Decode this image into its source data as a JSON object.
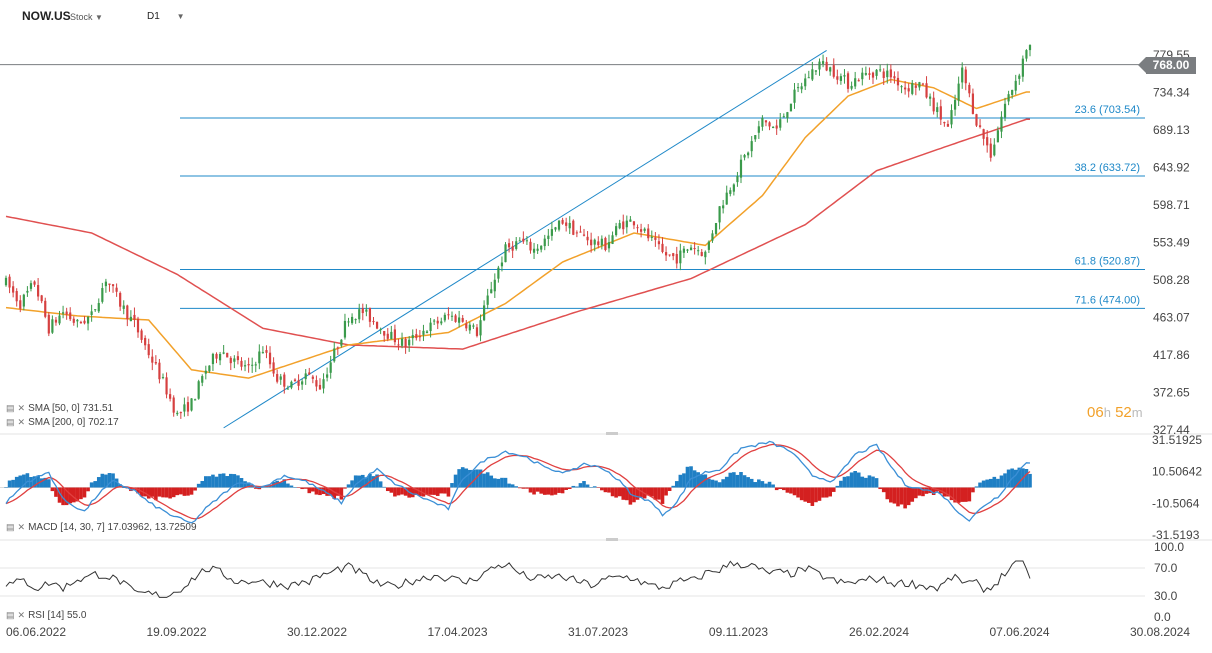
{
  "header": {
    "symbol": "NOW.US",
    "type": "Stock",
    "timeframe": "D1"
  },
  "current_price": "768.00",
  "timer": {
    "hours": "06",
    "h_unit": "h",
    "minutes": "52",
    "m_unit": "m"
  },
  "colors": {
    "up": "#3a9a4b",
    "down": "#d64040",
    "sma50": "#f2a12a",
    "sma200": "#e05050",
    "fib": "#1e88c8",
    "macd": "#3b8fd6",
    "signal": "#e04040",
    "rsi": "#333333"
  },
  "indicators": {
    "sma50_label": "SMA [50, 0] 731.51",
    "sma200_label": "SMA [200, 0] 702.17",
    "macd_label": "MACD [14, 30, 7] 17.03962, 13.72509",
    "rsi_label": "RSI [14] 55.0"
  },
  "chart_data": [
    {
      "type": "candlestick",
      "title": "NOW.US",
      "x_tick_labels": [
        "06.06.2022",
        "19.09.2022",
        "30.12.2022",
        "17.04.2023",
        "31.07.2023",
        "09.11.2023",
        "26.02.2024",
        "07.06.2024",
        "30.08.2024"
      ],
      "y_tick_labels": [
        "779.55",
        "734.34",
        "689.13",
        "643.92",
        "598.71",
        "553.49",
        "508.28",
        "463.07",
        "417.86",
        "372.65",
        "327.44"
      ],
      "ylim": [
        327.44,
        779.55
      ],
      "grid": false,
      "price_anchors": [
        [
          0,
          505
        ],
        [
          4,
          480
        ],
        [
          8,
          505
        ],
        [
          12,
          450
        ],
        [
          16,
          470
        ],
        [
          20,
          455
        ],
        [
          24,
          465
        ],
        [
          28,
          510
        ],
        [
          32,
          480
        ],
        [
          36,
          455
        ],
        [
          40,
          420
        ],
        [
          44,
          385
        ],
        [
          48,
          345
        ],
        [
          52,
          360
        ],
        [
          56,
          400
        ],
        [
          60,
          425
        ],
        [
          64,
          410
        ],
        [
          68,
          400
        ],
        [
          72,
          425
        ],
        [
          76,
          390
        ],
        [
          80,
          380
        ],
        [
          84,
          395
        ],
        [
          88,
          380
        ],
        [
          92,
          420
        ],
        [
          96,
          465
        ],
        [
          100,
          470
        ],
        [
          104,
          455
        ],
        [
          108,
          440
        ],
        [
          112,
          430
        ],
        [
          116,
          445
        ],
        [
          120,
          455
        ],
        [
          124,
          465
        ],
        [
          128,
          460
        ],
        [
          132,
          445
        ],
        [
          136,
          500
        ],
        [
          140,
          545
        ],
        [
          144,
          555
        ],
        [
          148,
          545
        ],
        [
          152,
          560
        ],
        [
          156,
          580
        ],
        [
          160,
          565
        ],
        [
          164,
          555
        ],
        [
          168,
          550
        ],
        [
          172,
          575
        ],
        [
          176,
          580
        ],
        [
          180,
          560
        ],
        [
          184,
          540
        ],
        [
          188,
          535
        ],
        [
          192,
          550
        ],
        [
          196,
          540
        ],
        [
          200,
          595
        ],
        [
          204,
          630
        ],
        [
          208,
          665
        ],
        [
          212,
          700
        ],
        [
          216,
          690
        ],
        [
          220,
          725
        ],
        [
          224,
          750
        ],
        [
          228,
          770
        ],
        [
          232,
          760
        ],
        [
          236,
          745
        ],
        [
          240,
          755
        ],
        [
          244,
          760
        ],
        [
          248,
          755
        ],
        [
          252,
          740
        ],
        [
          256,
          745
        ],
        [
          260,
          718
        ],
        [
          264,
          690
        ],
        [
          268,
          760
        ],
        [
          272,
          700
        ],
        [
          276,
          660
        ],
        [
          280,
          720
        ],
        [
          284,
          760
        ],
        [
          286,
          788
        ]
      ],
      "sma50_anchors": [
        [
          0,
          475
        ],
        [
          20,
          465
        ],
        [
          40,
          460
        ],
        [
          52,
          400
        ],
        [
          68,
          390
        ],
        [
          96,
          430
        ],
        [
          124,
          445
        ],
        [
          140,
          480
        ],
        [
          156,
          530
        ],
        [
          176,
          565
        ],
        [
          196,
          550
        ],
        [
          212,
          610
        ],
        [
          224,
          680
        ],
        [
          236,
          730
        ],
        [
          248,
          750
        ],
        [
          260,
          740
        ],
        [
          272,
          715
        ],
        [
          286,
          735
        ]
      ],
      "sma200_anchors": [
        [
          0,
          585
        ],
        [
          24,
          565
        ],
        [
          48,
          515
        ],
        [
          72,
          450
        ],
        [
          96,
          430
        ],
        [
          128,
          425
        ],
        [
          160,
          470
        ],
        [
          192,
          510
        ],
        [
          224,
          575
        ],
        [
          244,
          640
        ],
        [
          264,
          670
        ],
        [
          286,
          702
        ]
      ],
      "annotations": {
        "current_price_line": 768.0,
        "trend_line": {
          "from": [
            61,
            330
          ],
          "to": [
            230,
            785
          ]
        },
        "fib_levels": [
          {
            "label": "23.6 (703.54)",
            "value": 703.54
          },
          {
            "label": "38.2 (633.72)",
            "value": 633.72
          },
          {
            "label": "61.8 (520.87)",
            "value": 520.87
          },
          {
            "label": "71.6 (474.00)",
            "value": 474.0
          }
        ]
      }
    },
    {
      "type": "macd",
      "series": [
        {
          "name": "MACD [14, 30, 7]",
          "last": 17.03962
        },
        {
          "name": "signal",
          "last": 13.72509
        }
      ],
      "y_tick_labels": [
        "31.51925",
        "10.50642",
        "-10.5064",
        "-31.5193"
      ],
      "ylim": [
        -31.5193,
        31.51925
      ],
      "phase_points": [
        [
          0,
          -10
        ],
        [
          6,
          4
        ],
        [
          12,
          10
        ],
        [
          16,
          -8
        ],
        [
          22,
          -16
        ],
        [
          26,
          -4
        ],
        [
          30,
          4
        ],
        [
          36,
          -2
        ],
        [
          40,
          -10
        ],
        [
          46,
          -18
        ],
        [
          52,
          -24
        ],
        [
          56,
          -14
        ],
        [
          62,
          -2
        ],
        [
          66,
          4
        ],
        [
          72,
          0
        ],
        [
          78,
          8
        ],
        [
          84,
          4
        ],
        [
          90,
          -4
        ],
        [
          94,
          -10
        ],
        [
          98,
          2
        ],
        [
          104,
          12
        ],
        [
          108,
          4
        ],
        [
          114,
          -4
        ],
        [
          120,
          -10
        ],
        [
          124,
          -14
        ],
        [
          128,
          6
        ],
        [
          134,
          18
        ],
        [
          140,
          24
        ],
        [
          146,
          20
        ],
        [
          152,
          12
        ],
        [
          158,
          10
        ],
        [
          162,
          16
        ],
        [
          168,
          12
        ],
        [
          172,
          4
        ],
        [
          176,
          -6
        ],
        [
          180,
          -8
        ],
        [
          184,
          -18
        ],
        [
          188,
          -10
        ],
        [
          192,
          6
        ],
        [
          196,
          10
        ],
        [
          200,
          12
        ],
        [
          206,
          26
        ],
        [
          214,
          30
        ],
        [
          220,
          24
        ],
        [
          226,
          8
        ],
        [
          232,
          4
        ],
        [
          238,
          22
        ],
        [
          244,
          28
        ],
        [
          248,
          14
        ],
        [
          252,
          2
        ],
        [
          258,
          -2
        ],
        [
          262,
          -4
        ],
        [
          266,
          -14
        ],
        [
          270,
          -22
        ],
        [
          274,
          -12
        ],
        [
          278,
          -6
        ],
        [
          282,
          6
        ],
        [
          286,
          17
        ]
      ]
    },
    {
      "type": "line",
      "series": [
        {
          "name": "RSI [14]",
          "last": 55.0
        }
      ],
      "y_tick_labels": [
        "100.0",
        "70.0",
        "30.0",
        "0.0"
      ],
      "ylim": [
        0,
        100
      ],
      "reference_levels": [
        30,
        70
      ]
    }
  ]
}
